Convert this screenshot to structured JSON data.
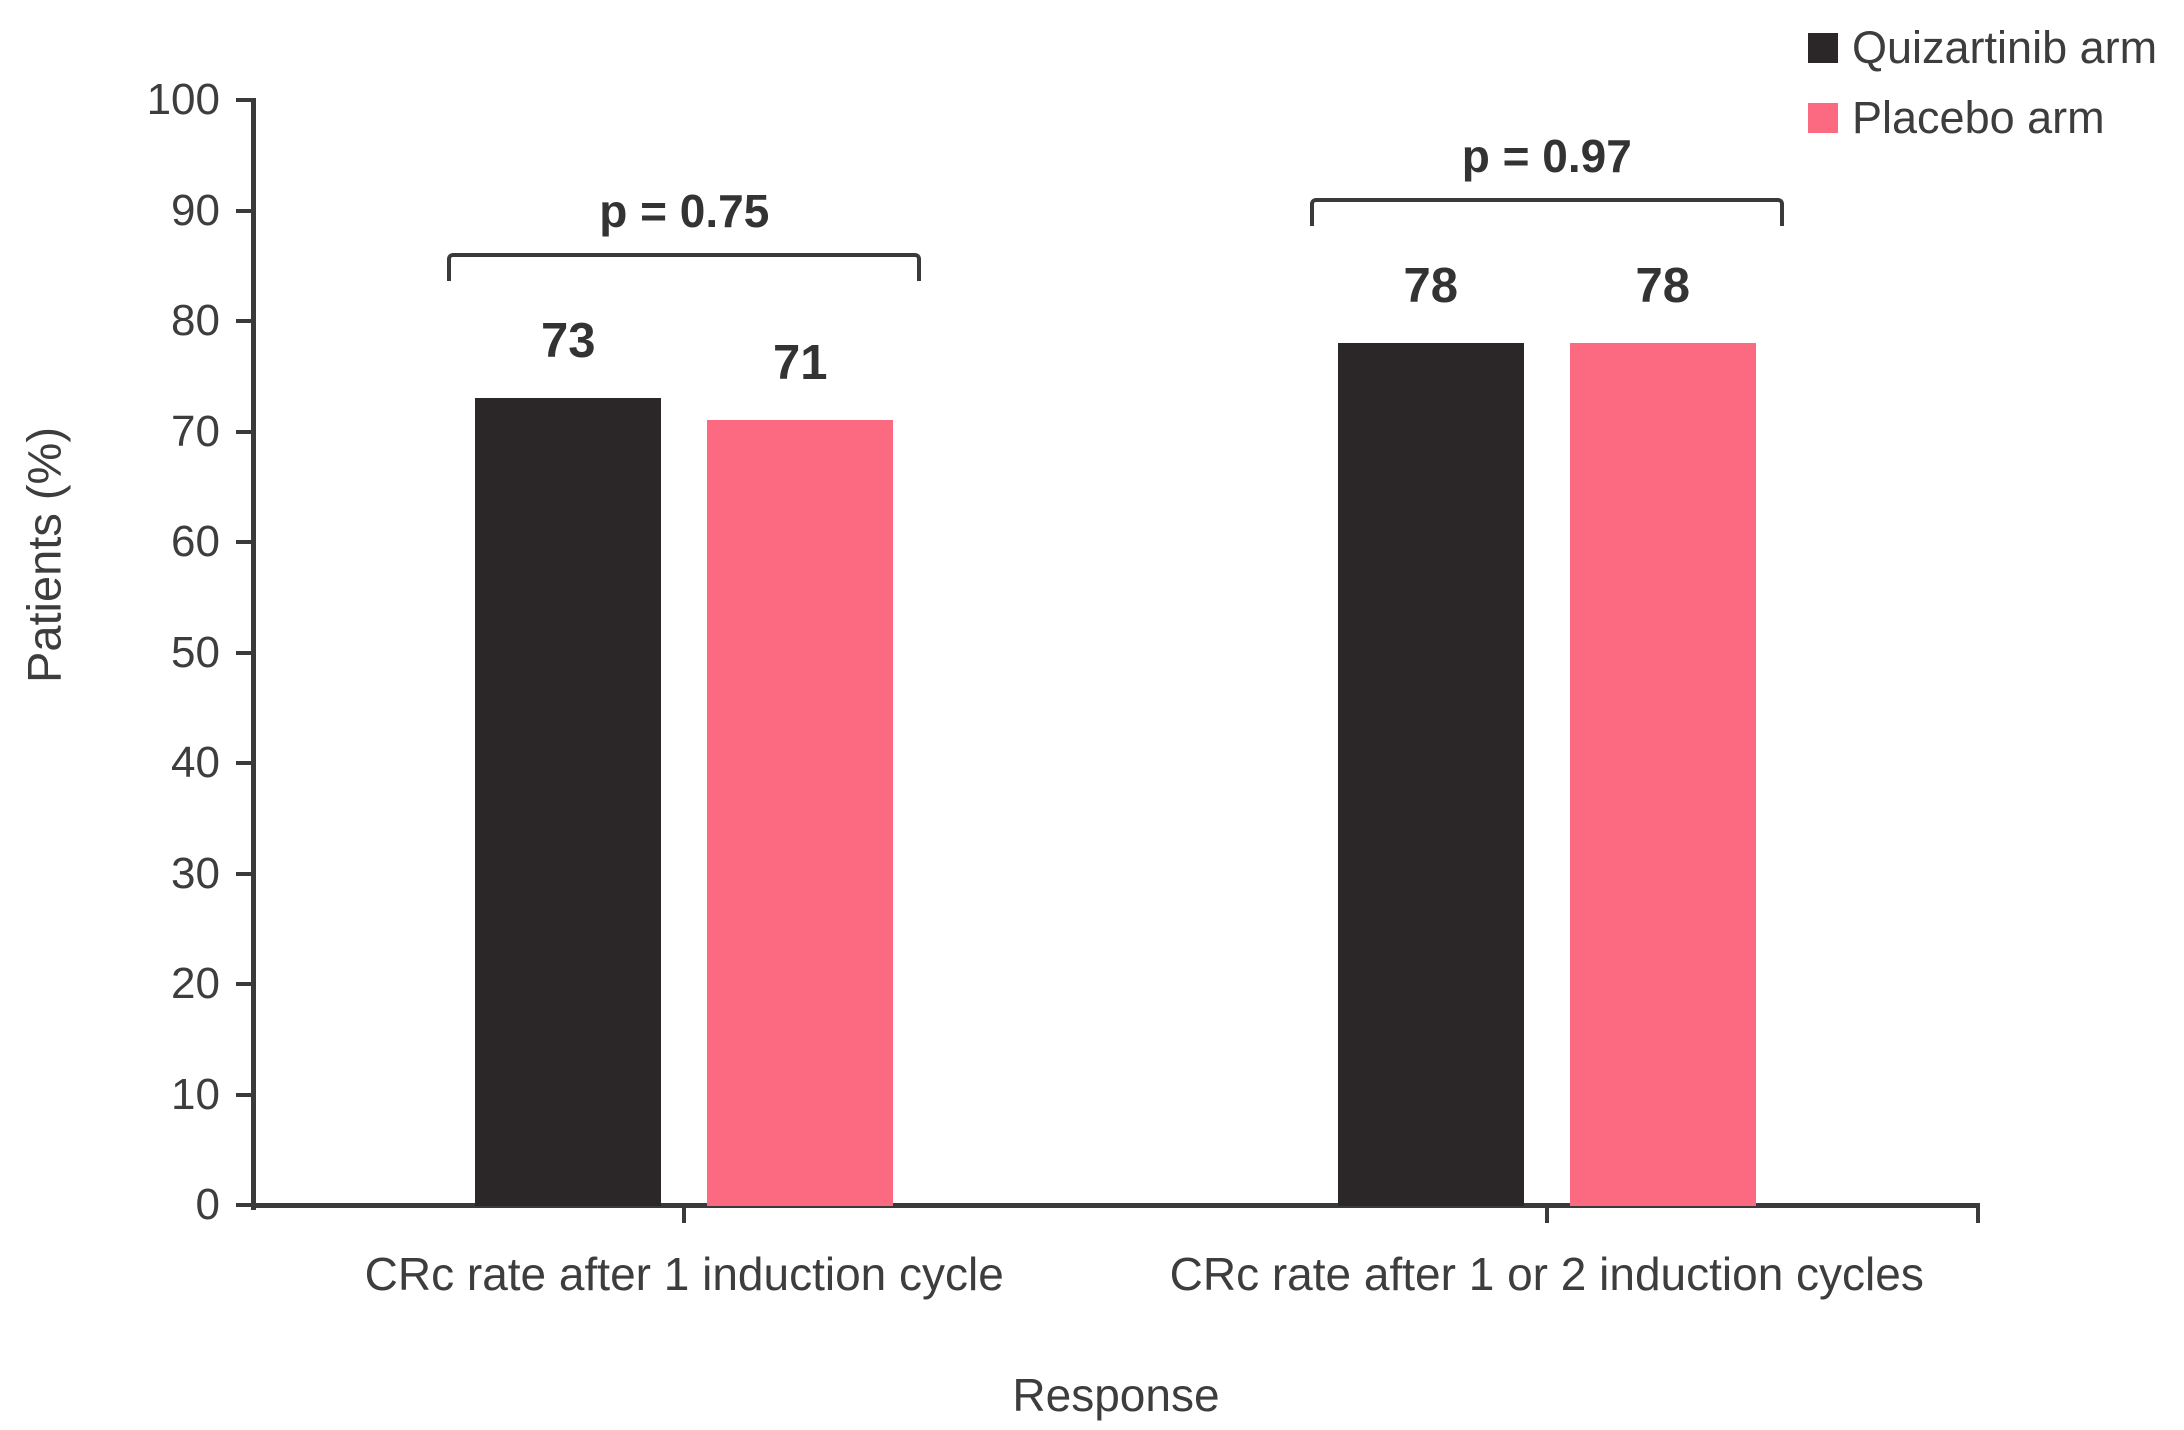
{
  "chart_data": {
    "type": "bar",
    "title": "",
    "xlabel": "Response",
    "ylabel": "Patients (%)",
    "ylim": [
      0,
      100
    ],
    "ytick_interval": 10,
    "yticks": [
      0,
      10,
      20,
      30,
      40,
      50,
      60,
      70,
      80,
      90,
      100
    ],
    "grid": false,
    "legend_position": "top-right",
    "categories": [
      "CRc rate after 1 induction cycle",
      "CRc rate after 1 or 2 induction cycles"
    ],
    "series": [
      {
        "name": "Quizartinib arm",
        "color": "#2b2627",
        "values": [
          73,
          78
        ]
      },
      {
        "name": "Placebo arm",
        "color": "#fb6a80",
        "values": [
          71,
          78
        ]
      }
    ],
    "annotations": [
      {
        "category_index": 0,
        "label": "p = 0.75"
      },
      {
        "category_index": 1,
        "label": "p = 0.97"
      }
    ]
  },
  "colors": {
    "axis": "#3a3a3a",
    "text": "#3d3d3d",
    "bold_text": "#333333",
    "background": "#ffffff"
  }
}
